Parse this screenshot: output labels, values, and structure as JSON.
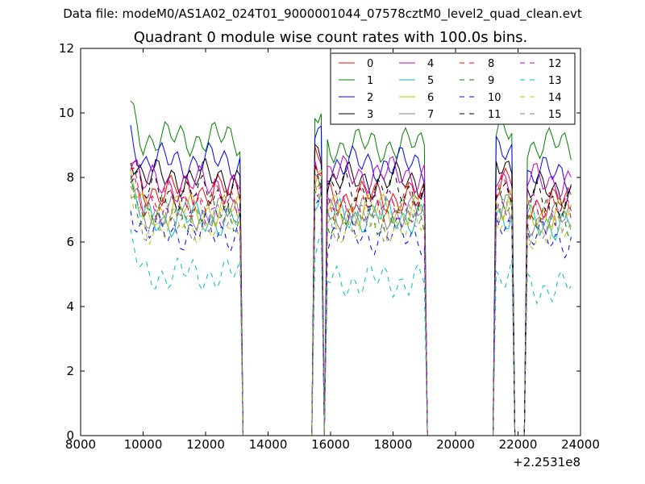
{
  "suptitle": "Data file: modeM0/AS1A02_024T01_9000001044_07578cztM0_level2_quad_clean.evt",
  "chart_data": {
    "type": "line",
    "title": "Quadrant 0 module wise count rates with 100.0s bins.",
    "xlabel": "",
    "ylabel": "",
    "x_offset_label": "+2.2531e8",
    "xlim": [
      8000,
      24000
    ],
    "ylim": [
      0,
      12
    ],
    "xticks": [
      "8000",
      "10000",
      "12000",
      "14000",
      "16000",
      "18000",
      "20000",
      "22000",
      "24000"
    ],
    "yticks": [
      "0",
      "2",
      "4",
      "6",
      "8",
      "10",
      "12"
    ],
    "grid": false,
    "legend_position": "top-right",
    "x_segments": [
      [
        9600,
        13100
      ],
      [
        15500,
        15700
      ],
      [
        15900,
        19000
      ],
      [
        21300,
        21800
      ],
      [
        22300,
        23700
      ]
    ],
    "gap_points": [
      13200,
      15400,
      15800,
      19100,
      21200,
      21900,
      22200
    ],
    "series": [
      {
        "name": "0",
        "color": "#ff0000",
        "dash": "solid",
        "seg_means": [
          7.6,
          8.5,
          7.4,
          7.8,
          7.2
        ]
      },
      {
        "name": "1",
        "color": "#008000",
        "dash": "solid",
        "seg_means": [
          9.2,
          9.8,
          9.0,
          9.3,
          9.0
        ]
      },
      {
        "name": "2",
        "color": "#0000ff",
        "dash": "solid",
        "seg_means": [
          8.5,
          9.3,
          8.4,
          8.7,
          8.1
        ]
      },
      {
        "name": "3",
        "color": "#000000",
        "dash": "solid",
        "seg_means": [
          8.0,
          8.8,
          7.9,
          8.3,
          7.6
        ]
      },
      {
        "name": "4",
        "color": "#bf00bf",
        "dash": "solid",
        "seg_means": [
          7.8,
          8.6,
          8.1,
          8.0,
          7.9
        ]
      },
      {
        "name": "5",
        "color": "#00bfbf",
        "dash": "solid",
        "seg_means": [
          6.7,
          7.5,
          6.8,
          6.9,
          6.6
        ]
      },
      {
        "name": "6",
        "color": "#bfbf00",
        "dash": "solid",
        "seg_means": [
          7.0,
          7.8,
          7.0,
          7.2,
          6.9
        ]
      },
      {
        "name": "7",
        "color": "#808080",
        "dash": "solid",
        "seg_means": [
          6.9,
          7.6,
          6.9,
          7.0,
          6.7
        ]
      },
      {
        "name": "8",
        "color": "#ff0000",
        "dash": "dashed",
        "seg_means": [
          7.3,
          8.2,
          7.2,
          7.5,
          7.0
        ]
      },
      {
        "name": "9",
        "color": "#008000",
        "dash": "dashed",
        "seg_means": [
          6.9,
          7.7,
          6.8,
          7.1,
          6.7
        ]
      },
      {
        "name": "10",
        "color": "#0000ff",
        "dash": "dashed",
        "seg_means": [
          6.3,
          7.1,
          6.2,
          6.5,
          6.1
        ]
      },
      {
        "name": "11",
        "color": "#000000",
        "dash": "dashed",
        "seg_means": [
          7.5,
          8.3,
          7.6,
          7.7,
          7.3
        ]
      },
      {
        "name": "12",
        "color": "#bf00bf",
        "dash": "dashed",
        "seg_means": [
          7.0,
          7.9,
          7.1,
          7.2,
          7.0
        ]
      },
      {
        "name": "13",
        "color": "#00bfbf",
        "dash": "dashed",
        "seg_means": [
          5.0,
          5.8,
          4.8,
          5.0,
          4.6
        ]
      },
      {
        "name": "14",
        "color": "#bfbf00",
        "dash": "dashed",
        "seg_means": [
          6.5,
          7.2,
          6.5,
          6.7,
          6.3
        ]
      },
      {
        "name": "15",
        "color": "#808080",
        "dash": "dashed",
        "seg_means": [
          6.6,
          7.4,
          6.6,
          6.8,
          6.4
        ]
      }
    ]
  }
}
